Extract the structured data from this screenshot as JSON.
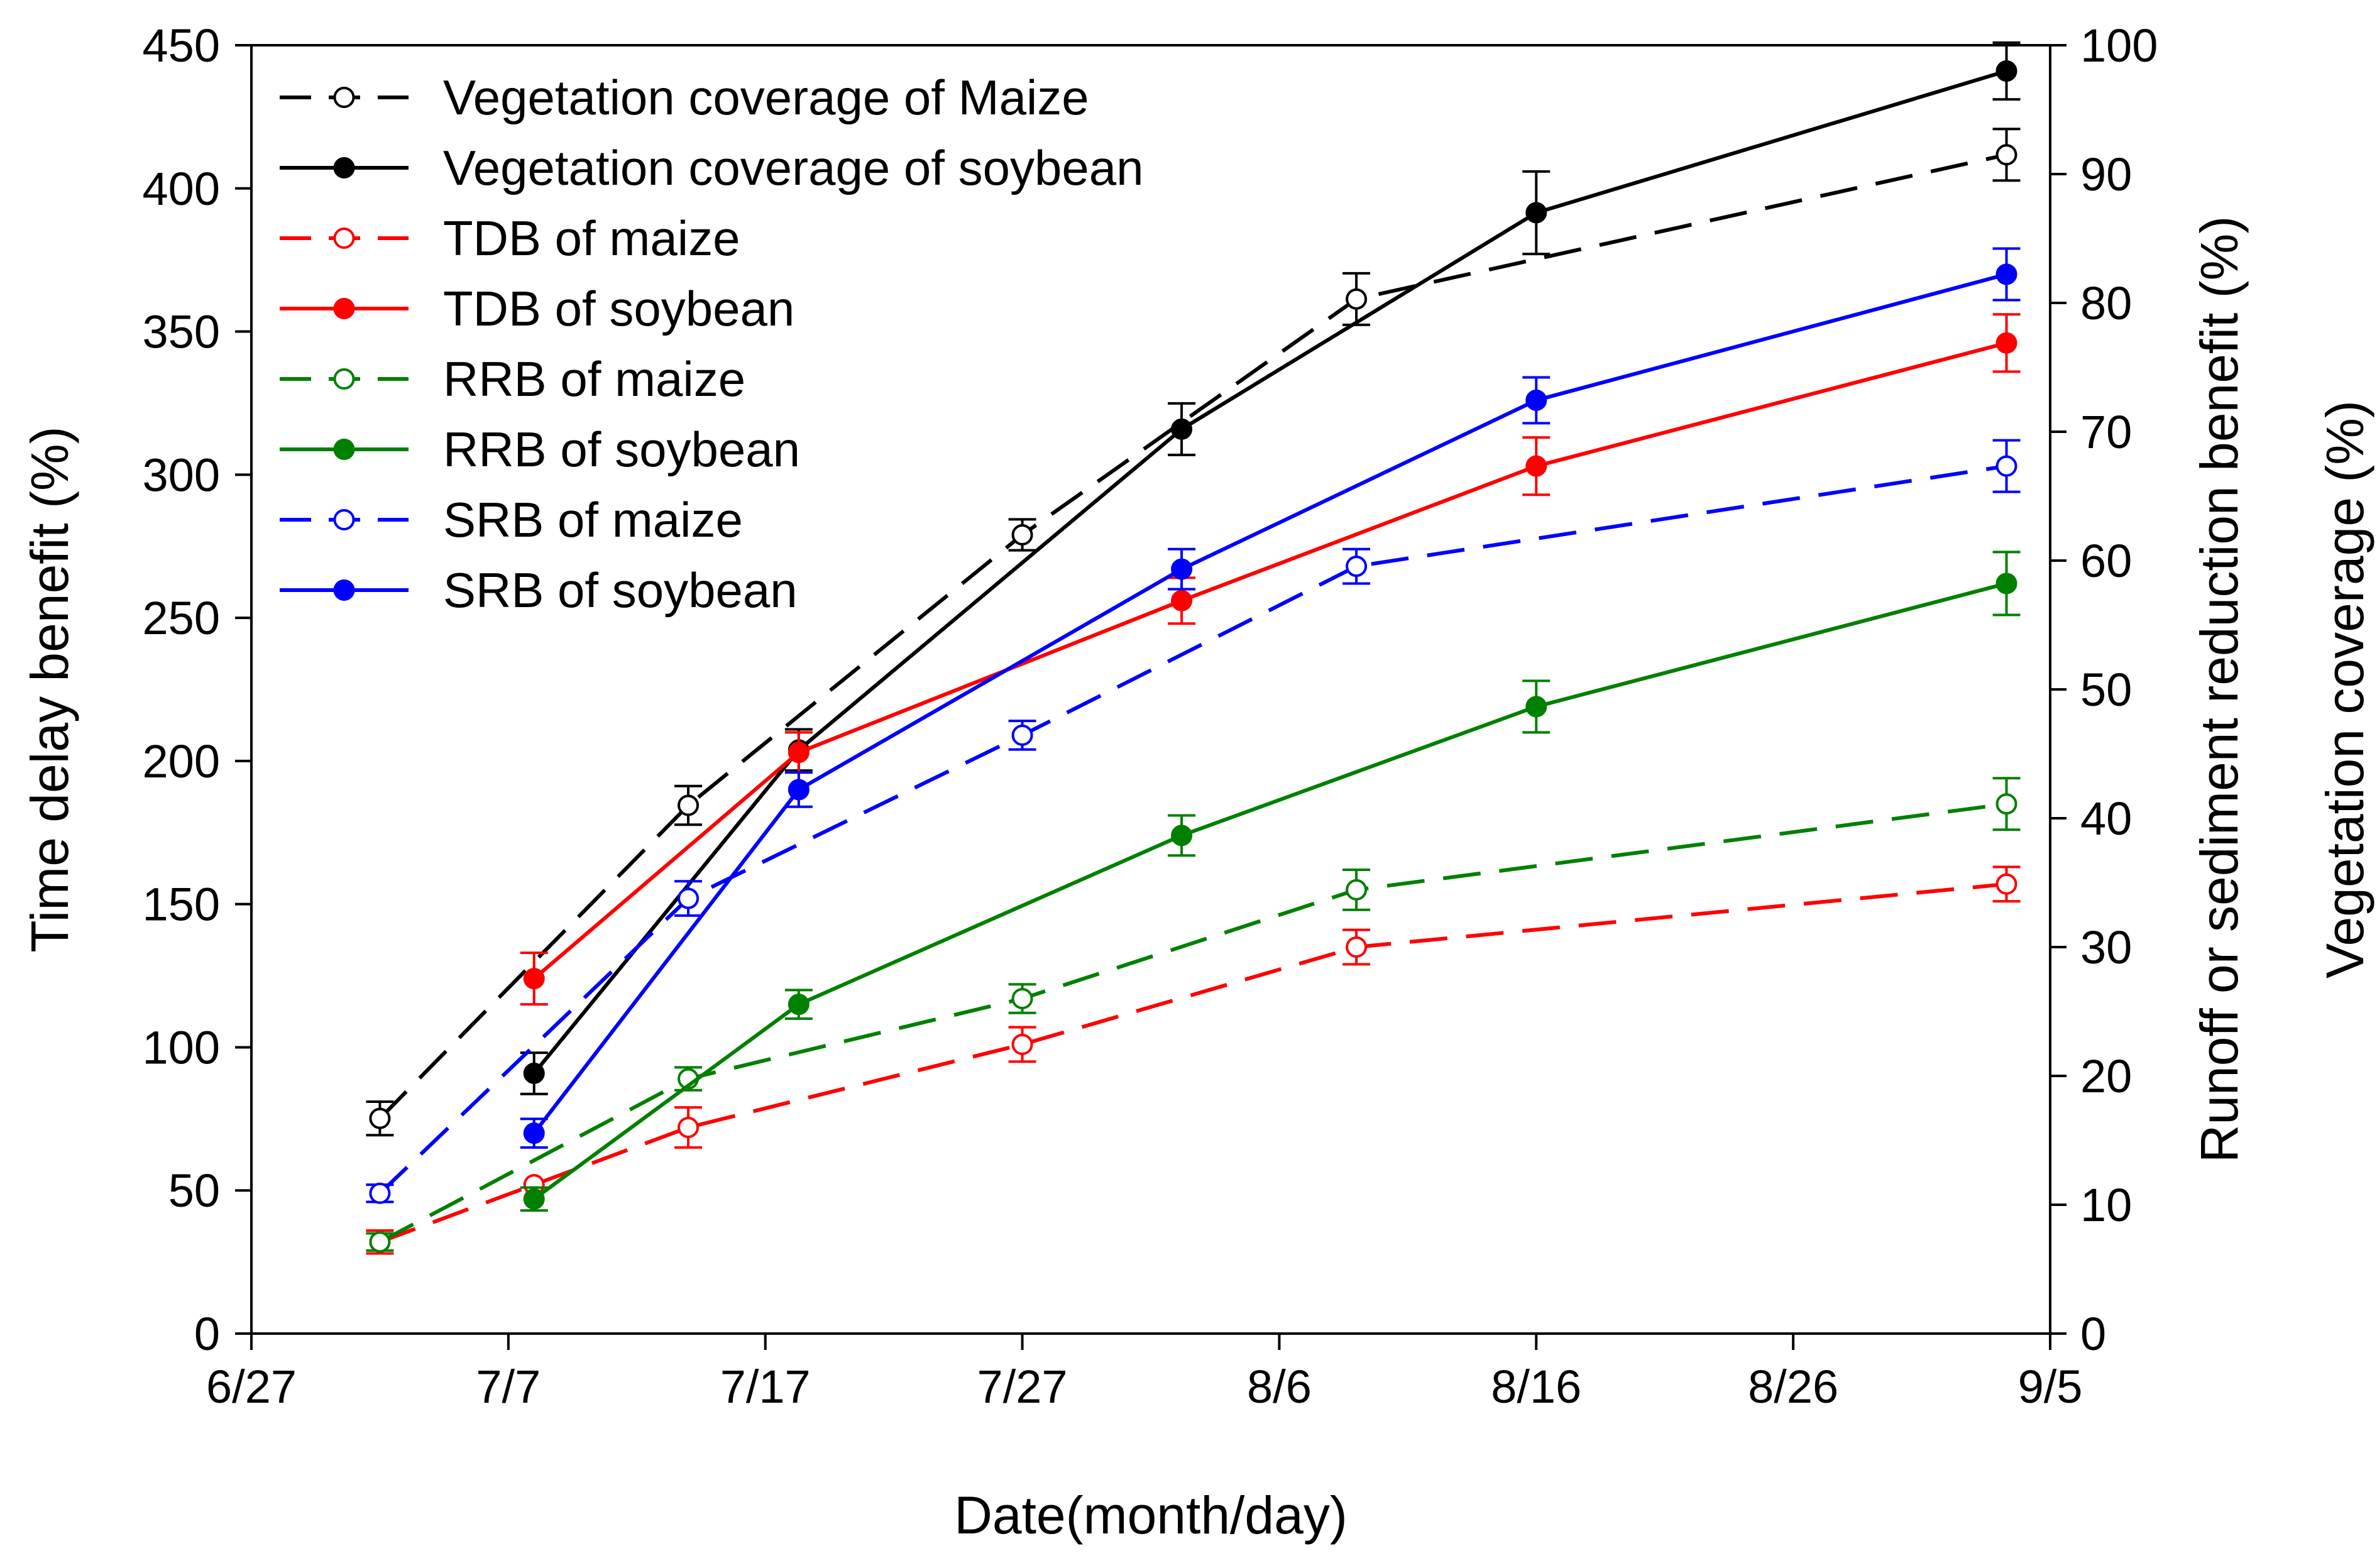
{
  "chart_data": {
    "type": "line",
    "title": "",
    "xlabel": "Date(month/day)",
    "ylabel_left": "Time delay benefit (%)",
    "ylabel_right_outer": "Vegetation coverage (%)",
    "ylabel_right_inner": "Runoff or sediment reduction benefit (%)",
    "x_unit": "days since 6/27",
    "xlim": [
      0,
      70
    ],
    "x_ticks": [
      {
        "label": "6/27",
        "value": 0
      },
      {
        "label": "7/7",
        "value": 10
      },
      {
        "label": "7/17",
        "value": 20
      },
      {
        "label": "7/27",
        "value": 30
      },
      {
        "label": "8/6",
        "value": 40
      },
      {
        "label": "8/16",
        "value": 50
      },
      {
        "label": "8/26",
        "value": 60
      },
      {
        "label": "9/5",
        "value": 70
      }
    ],
    "ylim_left": [
      0,
      450
    ],
    "y_ticks_left": [
      "0",
      "50",
      "100",
      "150",
      "200",
      "250",
      "300",
      "350",
      "400",
      "450"
    ],
    "ylim_right": [
      0,
      100
    ],
    "y_ticks_right": [
      "0",
      "10",
      "20",
      "30",
      "40",
      "50",
      "60",
      "70",
      "80",
      "90",
      "100"
    ],
    "legend_position": "top-left",
    "series": [
      {
        "name": "Vegetation coverage of Maize",
        "axis": "right",
        "color": "#000000",
        "dash": "dashed",
        "marker": "open",
        "x": [
          5,
          17,
          30,
          43,
          68.3
        ],
        "values": [
          16.7,
          41,
          62,
          80.3,
          91.5
        ],
        "errors": [
          1.3,
          1.5,
          1.2,
          2.0,
          2.0
        ]
      },
      {
        "name": "Vegetation coverage of soybean",
        "axis": "right",
        "color": "#000000",
        "dash": "solid",
        "marker": "filled",
        "x": [
          11,
          21.3,
          36.2,
          50,
          68.3
        ],
        "values": [
          20.2,
          45.3,
          70.2,
          87,
          98
        ],
        "errors": [
          1.6,
          1.6,
          2.0,
          3.2,
          2.2
        ]
      },
      {
        "name": "TDB of maize",
        "axis": "left",
        "color": "#ff0000",
        "dash": "dashed",
        "marker": "open",
        "x": [
          5,
          11,
          17,
          30,
          43,
          68.3
        ],
        "values": [
          32,
          52,
          72,
          101,
          135,
          157
        ],
        "errors": [
          4,
          0,
          7,
          6,
          6,
          6
        ]
      },
      {
        "name": "TDB of soybean",
        "axis": "left",
        "color": "#ff0000",
        "dash": "solid",
        "marker": "filled",
        "x": [
          11,
          21.3,
          36.2,
          50,
          68.3
        ],
        "values": [
          124,
          203,
          256,
          303,
          346
        ],
        "errors": [
          9,
          7,
          8,
          10,
          10
        ]
      },
      {
        "name": "RRB of maize",
        "axis": "left",
        "color": "#008000",
        "dash": "dashed",
        "marker": "open",
        "x": [
          5,
          17,
          30,
          43,
          68.3
        ],
        "values": [
          32,
          89,
          117,
          155,
          185
        ],
        "errors": [
          3,
          4,
          5,
          7,
          9
        ]
      },
      {
        "name": "RRB of soybean",
        "axis": "left",
        "color": "#008000",
        "dash": "solid",
        "marker": "filled",
        "x": [
          11,
          21.3,
          36.2,
          50,
          68.3
        ],
        "values": [
          47,
          115,
          174,
          219,
          262
        ],
        "errors": [
          4,
          5,
          7,
          9,
          11
        ]
      },
      {
        "name": "SRB of maize",
        "axis": "left",
        "color": "#0000ff",
        "dash": "dashed",
        "marker": "open",
        "x": [
          5,
          17,
          30,
          43,
          68.3
        ],
        "values": [
          49,
          152,
          209,
          268,
          303
        ],
        "errors": [
          3,
          6,
          5,
          6,
          9
        ]
      },
      {
        "name": "SRB of soybean",
        "axis": "left",
        "color": "#0000ff",
        "dash": "solid",
        "marker": "filled",
        "x": [
          11,
          21.3,
          36.2,
          50,
          68.3
        ],
        "values": [
          70,
          190,
          267,
          326,
          370
        ],
        "errors": [
          5,
          6,
          7,
          8,
          9
        ]
      }
    ]
  }
}
